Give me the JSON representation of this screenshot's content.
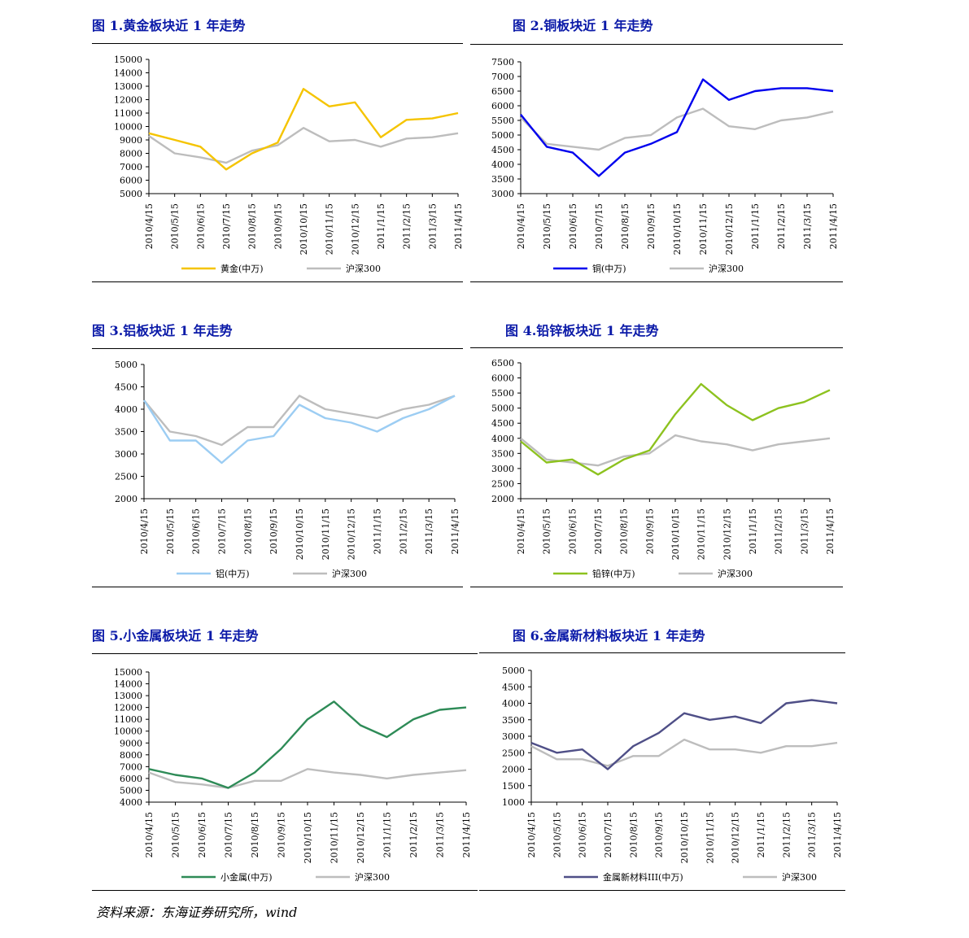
{
  "source": "资料来源：东海证券研究所，wind",
  "xticks": [
    "2010/4/15",
    "2010/5/15",
    "2010/6/15",
    "2010/7/15",
    "2010/8/15",
    "2010/9/15",
    "2010/10/15",
    "2010/11/15",
    "2010/12/15",
    "2011/1/15",
    "2011/2/15",
    "2011/3/15",
    "2011/4/15"
  ],
  "chart_data": [
    {
      "type": "line",
      "title": "图  1.黄金板块近 1 年走势",
      "ylim": [
        5000,
        15000
      ],
      "yticks": [
        5000,
        6000,
        7000,
        8000,
        9000,
        10000,
        11000,
        12000,
        13000,
        14000,
        15000
      ],
      "x": [
        "2010/4/15",
        "2010/5/15",
        "2010/6/15",
        "2010/7/15",
        "2010/8/15",
        "2010/9/15",
        "2010/10/15",
        "2010/11/15",
        "2010/12/15",
        "2011/1/15",
        "2011/2/15",
        "2011/3/15",
        "2011/4/15"
      ],
      "series": [
        {
          "name": "黄金(中万)",
          "color": "#f5c400",
          "values": [
            9500,
            9000,
            8500,
            6800,
            8000,
            8800,
            12800,
            11500,
            11800,
            9200,
            10500,
            10600,
            11000
          ]
        },
        {
          "name": "沪深300",
          "color": "#bdbdbd",
          "values": [
            9300,
            8000,
            7700,
            7300,
            8200,
            8600,
            9900,
            8900,
            9000,
            8500,
            9100,
            9200,
            9500
          ]
        }
      ]
    },
    {
      "type": "line",
      "title": "图  2.铜板块近 1 年走势",
      "ylim": [
        3000,
        7500
      ],
      "yticks": [
        3000,
        3500,
        4000,
        4500,
        5000,
        5500,
        6000,
        6500,
        7000,
        7500
      ],
      "x": [
        "2010/4/15",
        "2010/5/15",
        "2010/6/15",
        "2010/7/15",
        "2010/8/15",
        "2010/9/15",
        "2010/10/15",
        "2010/11/15",
        "2010/12/15",
        "2011/1/15",
        "2011/2/15",
        "2011/3/15",
        "2011/4/15"
      ],
      "series": [
        {
          "name": "铜(中万)",
          "color": "#0000ee",
          "values": [
            5700,
            4600,
            4400,
            3600,
            4400,
            4700,
            5100,
            6900,
            6200,
            6500,
            6600,
            6600,
            6500
          ]
        },
        {
          "name": "沪深300",
          "color": "#bdbdbd",
          "values": [
            5600,
            4700,
            4600,
            4500,
            4900,
            5000,
            5600,
            5900,
            5300,
            5200,
            5500,
            5600,
            5800
          ]
        }
      ]
    },
    {
      "type": "line",
      "title": "图  3.铝板块近 1 年走势",
      "ylim": [
        2000,
        5000
      ],
      "yticks": [
        2000,
        2500,
        3000,
        3500,
        4000,
        4500,
        5000
      ],
      "x": [
        "2010/4/15",
        "2010/5/15",
        "2010/6/15",
        "2010/7/15",
        "2010/8/15",
        "2010/9/15",
        "2010/10/15",
        "2010/11/15",
        "2010/12/15",
        "2011/1/15",
        "2011/2/15",
        "2011/3/15",
        "2011/4/15"
      ],
      "series": [
        {
          "name": "铝(中万)",
          "color": "#9ccdf3",
          "values": [
            4200,
            3300,
            3300,
            2800,
            3300,
            3400,
            4100,
            3800,
            3700,
            3500,
            3800,
            4000,
            4300
          ]
        },
        {
          "name": "沪深300",
          "color": "#bdbdbd",
          "values": [
            4200,
            3500,
            3400,
            3200,
            3600,
            3600,
            4300,
            4000,
            3900,
            3800,
            4000,
            4100,
            4300
          ]
        }
      ]
    },
    {
      "type": "line",
      "title": "图  4.铅锌板块近 1 年走势",
      "ylim": [
        2000,
        6500
      ],
      "yticks": [
        2000,
        2500,
        3000,
        3500,
        4000,
        4500,
        5000,
        5500,
        6000,
        6500
      ],
      "x": [
        "2010/4/15",
        "2010/5/15",
        "2010/6/15",
        "2010/7/15",
        "2010/8/15",
        "2010/9/15",
        "2010/10/15",
        "2010/11/15",
        "2010/12/15",
        "2011/1/15",
        "2011/2/15",
        "2011/3/15",
        "2011/4/15"
      ],
      "series": [
        {
          "name": "铅锌(中万)",
          "color": "#8dc21f",
          "values": [
            3900,
            3200,
            3300,
            2800,
            3300,
            3600,
            4800,
            5800,
            5100,
            4600,
            5000,
            5200,
            5600
          ]
        },
        {
          "name": "沪深300",
          "color": "#bdbdbd",
          "values": [
            4000,
            3300,
            3200,
            3100,
            3400,
            3500,
            4100,
            3900,
            3800,
            3600,
            3800,
            3900,
            4000
          ]
        }
      ]
    },
    {
      "type": "line",
      "title": "图  5.小金属板块近 1 年走势",
      "ylim": [
        4000,
        15000
      ],
      "yticks": [
        4000,
        5000,
        6000,
        7000,
        8000,
        9000,
        10000,
        11000,
        12000,
        13000,
        14000,
        15000
      ],
      "x": [
        "2010/4/15",
        "2010/5/15",
        "2010/6/15",
        "2010/7/15",
        "2010/8/15",
        "2010/9/15",
        "2010/10/15",
        "2010/11/15",
        "2010/12/15",
        "2011/1/15",
        "2011/2/15",
        "2011/3/15",
        "2011/4/15"
      ],
      "series": [
        {
          "name": "小金属(中万)",
          "color": "#2e8b57",
          "values": [
            6800,
            6300,
            6000,
            5200,
            6500,
            8500,
            11000,
            12500,
            10500,
            9500,
            11000,
            11800,
            12000
          ]
        },
        {
          "name": "沪深300",
          "color": "#bdbdbd",
          "values": [
            6500,
            5700,
            5500,
            5200,
            5800,
            5800,
            6800,
            6500,
            6300,
            6000,
            6300,
            6500,
            6700
          ]
        }
      ]
    },
    {
      "type": "line",
      "title": "图  6.金属新材料板块近 1 年走势",
      "ylim": [
        1000,
        5000
      ],
      "yticks": [
        1000,
        1500,
        2000,
        2500,
        3000,
        3500,
        4000,
        4500,
        5000
      ],
      "x": [
        "2010/4/15",
        "2010/5/15",
        "2010/6/15",
        "2010/7/15",
        "2010/8/15",
        "2010/9/15",
        "2010/10/15",
        "2010/11/15",
        "2010/12/15",
        "2011/1/15",
        "2011/2/15",
        "2011/3/15",
        "2011/4/15"
      ],
      "series": [
        {
          "name": "金属新材料III(中万)",
          "color": "#4f4f87",
          "values": [
            2800,
            2500,
            2600,
            2000,
            2700,
            3100,
            3700,
            3500,
            3600,
            3400,
            4000,
            4100,
            4000
          ]
        },
        {
          "name": "沪深300",
          "color": "#bdbdbd",
          "values": [
            2700,
            2300,
            2300,
            2100,
            2400,
            2400,
            2900,
            2600,
            2600,
            2500,
            2700,
            2700,
            2800
          ]
        }
      ]
    }
  ]
}
